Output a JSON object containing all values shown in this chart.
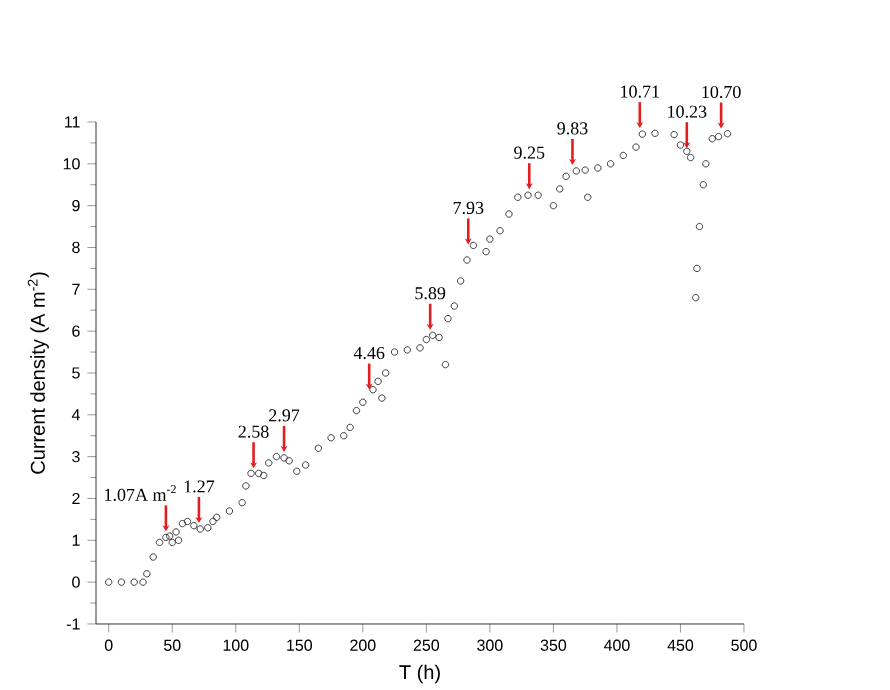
{
  "chart_data": {
    "type": "scatter",
    "xlabel": "T (h)",
    "ylabel": "Current density (A m$^{-2}$)",
    "xlim": [
      -10,
      500
    ],
    "ylim": [
      -1,
      11
    ],
    "xticks": [
      0,
      50,
      100,
      150,
      200,
      250,
      300,
      350,
      400,
      450,
      500
    ],
    "yticks": [
      -1,
      0,
      1,
      2,
      3,
      4,
      5,
      6,
      7,
      8,
      9,
      10,
      11
    ],
    "marker": "circle",
    "series": [
      {
        "color": "#111111",
        "x": [
          0,
          10,
          20,
          27,
          30,
          35,
          40,
          45,
          48,
          50,
          53,
          55,
          58,
          62,
          67,
          72,
          78,
          82,
          85,
          95,
          105,
          108,
          112,
          118,
          122,
          126,
          132,
          138,
          142,
          148,
          155,
          165,
          175,
          185,
          190,
          195,
          200,
          208,
          212,
          215,
          218,
          225,
          235,
          245,
          250,
          255,
          260,
          265,
          267,
          272,
          277,
          282,
          287,
          297,
          300,
          308,
          315,
          322,
          330,
          338,
          350,
          355,
          360,
          368,
          375,
          377,
          385,
          395,
          405,
          415,
          420,
          430,
          445,
          450,
          455,
          458,
          462,
          463,
          465,
          468,
          470,
          475,
          480,
          487
        ],
        "values": [
          0,
          0,
          0,
          0,
          0.2,
          0.6,
          0.95,
          1.07,
          1.1,
          0.95,
          1.2,
          1.0,
          1.4,
          1.45,
          1.35,
          1.27,
          1.3,
          1.45,
          1.55,
          1.7,
          1.9,
          2.3,
          2.6,
          2.6,
          2.55,
          2.85,
          3.0,
          2.97,
          2.9,
          2.65,
          2.8,
          3.2,
          3.45,
          3.5,
          3.7,
          4.1,
          4.3,
          4.6,
          4.8,
          4.4,
          5.0,
          5.5,
          5.55,
          5.6,
          5.8,
          5.9,
          5.85,
          5.2,
          6.3,
          6.6,
          7.2,
          7.7,
          8.05,
          7.9,
          8.2,
          8.4,
          8.8,
          9.2,
          9.25,
          9.25,
          9.0,
          9.4,
          9.7,
          9.83,
          9.85,
          9.2,
          9.9,
          10.0,
          10.2,
          10.4,
          10.71,
          10.73,
          10.7,
          10.45,
          10.3,
          10.15,
          6.8,
          7.5,
          8.5,
          9.5,
          10.0,
          10.6,
          10.65,
          10.72
        ]
      }
    ],
    "annotations": [
      {
        "text": "1.07A m$^{-2}$",
        "x": 45,
        "y": 1.07
      },
      {
        "text": "1.27",
        "x": 71,
        "y": 1.27
      },
      {
        "text": "2.58",
        "x": 114,
        "y": 2.58
      },
      {
        "text": "2.97",
        "x": 138,
        "y": 2.97
      },
      {
        "text": "4.46",
        "x": 205,
        "y": 4.46
      },
      {
        "text": "5.89",
        "x": 253,
        "y": 5.89
      },
      {
        "text": "7.93",
        "x": 283,
        "y": 7.93
      },
      {
        "text": "9.25",
        "x": 331,
        "y": 9.25
      },
      {
        "text": "9.83",
        "x": 365,
        "y": 9.83
      },
      {
        "text": "10.71",
        "x": 418,
        "y": 10.71
      },
      {
        "text": "10.23",
        "x": 455,
        "y": 10.23
      },
      {
        "text": "10.70",
        "x": 482,
        "y": 10.7
      }
    ]
  }
}
